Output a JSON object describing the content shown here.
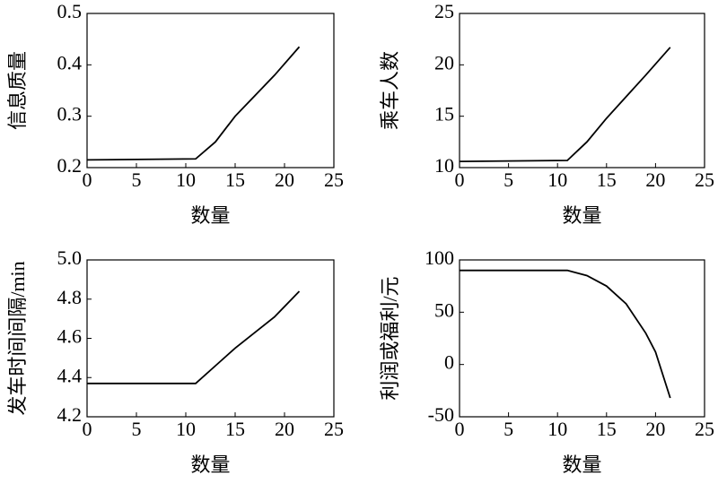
{
  "chart_data": [
    {
      "type": "line",
      "x_label": "数量",
      "y_label": "信息质量",
      "x": [
        0,
        11,
        13,
        15,
        17,
        19,
        21.5
      ],
      "values": [
        0.215,
        0.217,
        0.25,
        0.3,
        0.34,
        0.38,
        0.435
      ],
      "color": "#000000",
      "xlim": [
        0,
        25
      ],
      "xticks": [
        0,
        5,
        10,
        15,
        20,
        25
      ],
      "ylim": [
        0.2,
        0.5
      ],
      "yticks": [
        0.2,
        0.3,
        0.4,
        0.5
      ]
    },
    {
      "type": "line",
      "x_label": "数量",
      "y_label": "乘车人数",
      "x": [
        0,
        11,
        13,
        15,
        17,
        19,
        21.5
      ],
      "values": [
        10.6,
        10.7,
        12.5,
        14.8,
        16.9,
        19,
        21.7
      ],
      "color": "#000000",
      "xlim": [
        0,
        25
      ],
      "xticks": [
        0,
        5,
        10,
        15,
        20,
        25
      ],
      "ylim": [
        10,
        25
      ],
      "yticks": [
        10,
        15,
        20,
        25
      ]
    },
    {
      "type": "line",
      "x_label": "数量",
      "y_label": "发车时间间隔/min",
      "x": [
        0,
        11,
        13,
        15,
        17,
        19,
        21.5
      ],
      "values": [
        4.37,
        4.37,
        4.46,
        4.55,
        4.63,
        4.71,
        4.84
      ],
      "color": "#000000",
      "xlim": [
        0,
        25
      ],
      "xticks": [
        0,
        5,
        10,
        15,
        20,
        25
      ],
      "ylim": [
        4.2,
        5.0
      ],
      "yticks": [
        4.2,
        4.4,
        4.6,
        4.8,
        {
          "value": 5,
          "label": "5.0"
        }
      ]
    },
    {
      "type": "line",
      "x_label": "数量",
      "y_label": "利润或福利/元",
      "x": [
        0,
        11,
        13,
        15,
        17,
        19,
        20,
        21.5
      ],
      "values": [
        90,
        90,
        85,
        75,
        58,
        30,
        12,
        -32
      ],
      "color": "#000000",
      "xlim": [
        0,
        25
      ],
      "xticks": [
        0,
        5,
        10,
        15,
        20,
        25
      ],
      "ylim": [
        -50,
        100
      ],
      "yticks": [
        -50,
        0,
        50,
        100
      ]
    }
  ]
}
